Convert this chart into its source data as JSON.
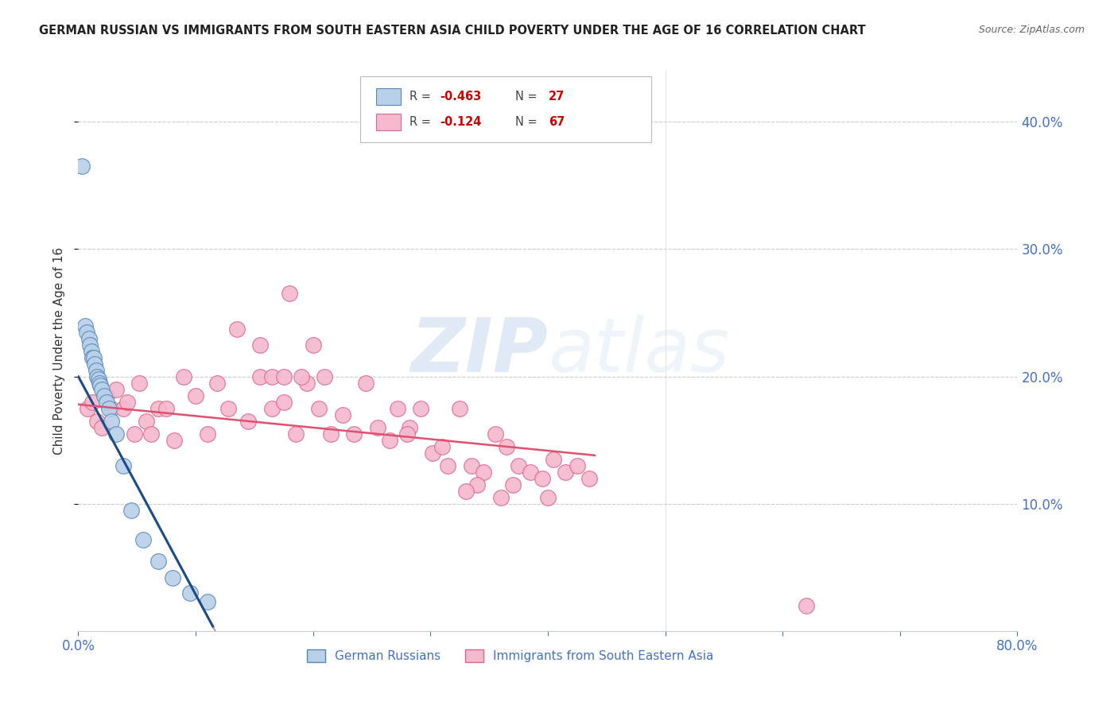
{
  "title": "GERMAN RUSSIAN VS IMMIGRANTS FROM SOUTH EASTERN ASIA CHILD POVERTY UNDER THE AGE OF 16 CORRELATION CHART",
  "source": "Source: ZipAtlas.com",
  "ylabel": "Child Poverty Under the Age of 16",
  "xlim": [
    0,
    0.8
  ],
  "ylim": [
    0,
    0.44
  ],
  "blue_R": -0.463,
  "blue_N": 27,
  "pink_R": -0.124,
  "pink_N": 67,
  "blue_fill": "#b8d0e8",
  "blue_edge": "#5588bb",
  "pink_fill": "#f5b8cc",
  "pink_edge": "#dd6688",
  "blue_line_color": "#1a4a88",
  "pink_line_color": "#e05070",
  "axis_color": "#4472c4",
  "legend_blue_label": "German Russians",
  "legend_pink_label": "Immigrants from South Eastern Asia",
  "blue_scatter_x": [
    0.003,
    0.006,
    0.007,
    0.009,
    0.01,
    0.011,
    0.012,
    0.013,
    0.014,
    0.015,
    0.016,
    0.017,
    0.018,
    0.019,
    0.02,
    0.022,
    0.024,
    0.026,
    0.028,
    0.032,
    0.038,
    0.045,
    0.055,
    0.068,
    0.08,
    0.095,
    0.11
  ],
  "blue_scatter_y": [
    0.365,
    0.24,
    0.235,
    0.23,
    0.225,
    0.22,
    0.215,
    0.215,
    0.21,
    0.205,
    0.2,
    0.198,
    0.195,
    0.193,
    0.19,
    0.185,
    0.18,
    0.175,
    0.165,
    0.155,
    0.13,
    0.095,
    0.072,
    0.055,
    0.042,
    0.03,
    0.023
  ],
  "pink_scatter_x": [
    0.008,
    0.012,
    0.016,
    0.02,
    0.024,
    0.028,
    0.032,
    0.038,
    0.042,
    0.048,
    0.052,
    0.058,
    0.062,
    0.068,
    0.075,
    0.082,
    0.09,
    0.1,
    0.11,
    0.118,
    0.128,
    0.135,
    0.145,
    0.155,
    0.165,
    0.175,
    0.185,
    0.195,
    0.205,
    0.215,
    0.225,
    0.235,
    0.245,
    0.255,
    0.265,
    0.272,
    0.282,
    0.292,
    0.302,
    0.315,
    0.325,
    0.335,
    0.345,
    0.355,
    0.365,
    0.375,
    0.385,
    0.395,
    0.405,
    0.415,
    0.425,
    0.435,
    0.28,
    0.31,
    0.34,
    0.37,
    0.4,
    0.33,
    0.36,
    0.62,
    0.18,
    0.2,
    0.155,
    0.165,
    0.175,
    0.19,
    0.21
  ],
  "pink_scatter_y": [
    0.175,
    0.18,
    0.165,
    0.16,
    0.185,
    0.175,
    0.19,
    0.175,
    0.18,
    0.155,
    0.195,
    0.165,
    0.155,
    0.175,
    0.175,
    0.15,
    0.2,
    0.185,
    0.155,
    0.195,
    0.175,
    0.237,
    0.165,
    0.225,
    0.175,
    0.18,
    0.155,
    0.195,
    0.175,
    0.155,
    0.17,
    0.155,
    0.195,
    0.16,
    0.15,
    0.175,
    0.16,
    0.175,
    0.14,
    0.13,
    0.175,
    0.13,
    0.125,
    0.155,
    0.145,
    0.13,
    0.125,
    0.12,
    0.135,
    0.125,
    0.13,
    0.12,
    0.155,
    0.145,
    0.115,
    0.115,
    0.105,
    0.11,
    0.105,
    0.02,
    0.265,
    0.225,
    0.2,
    0.2,
    0.2,
    0.2,
    0.2
  ]
}
